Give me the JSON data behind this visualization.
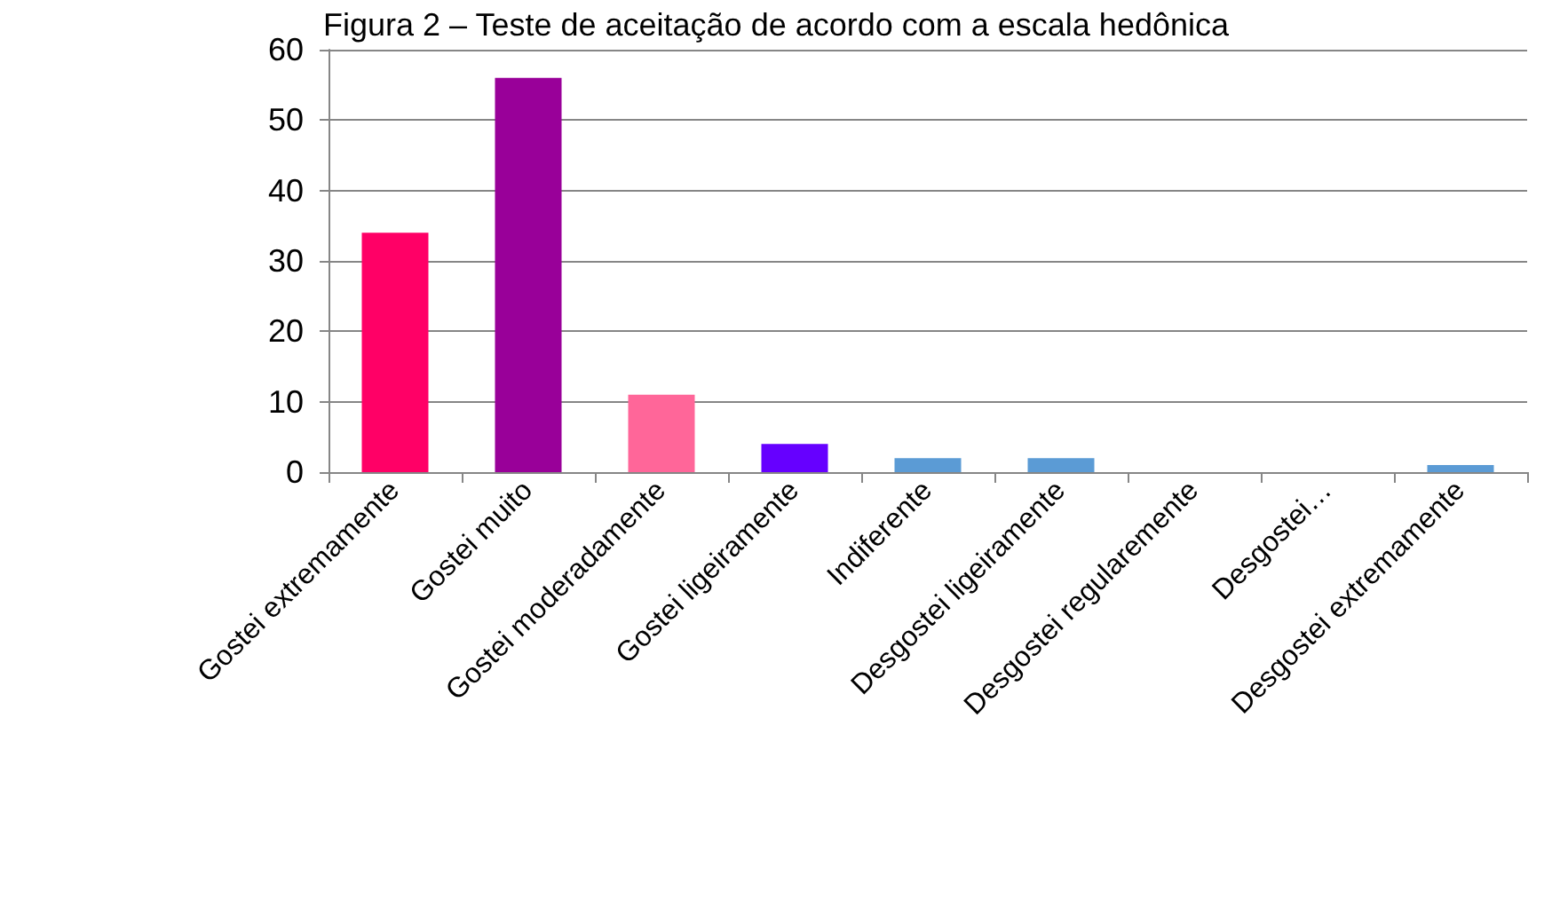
{
  "chart_data": {
    "type": "bar",
    "title": "Figura 2 – Teste de aceitação de acordo com a escala hedônica",
    "categories": [
      "Gostei extremamente",
      "Gostei muito",
      "Gostei moderadamente",
      "Gostei ligeiramente",
      "Indiferente",
      "Desgostei ligeiramente",
      "Desgostei regularemente",
      "Desgostei…",
      "Desgostei extremamente"
    ],
    "values": [
      34,
      56,
      11,
      4,
      2,
      2,
      0,
      0,
      1
    ],
    "colors": [
      "#ff0066",
      "#990099",
      "#ff6699",
      "#6600ff",
      "#5b9bd5",
      "#5b9bd5",
      "#5b9bd5",
      "#5b9bd5",
      "#5b9bd5"
    ],
    "ylim": [
      0,
      60
    ],
    "yticks": [
      0,
      10,
      20,
      30,
      40,
      50,
      60
    ],
    "grid": "y"
  }
}
